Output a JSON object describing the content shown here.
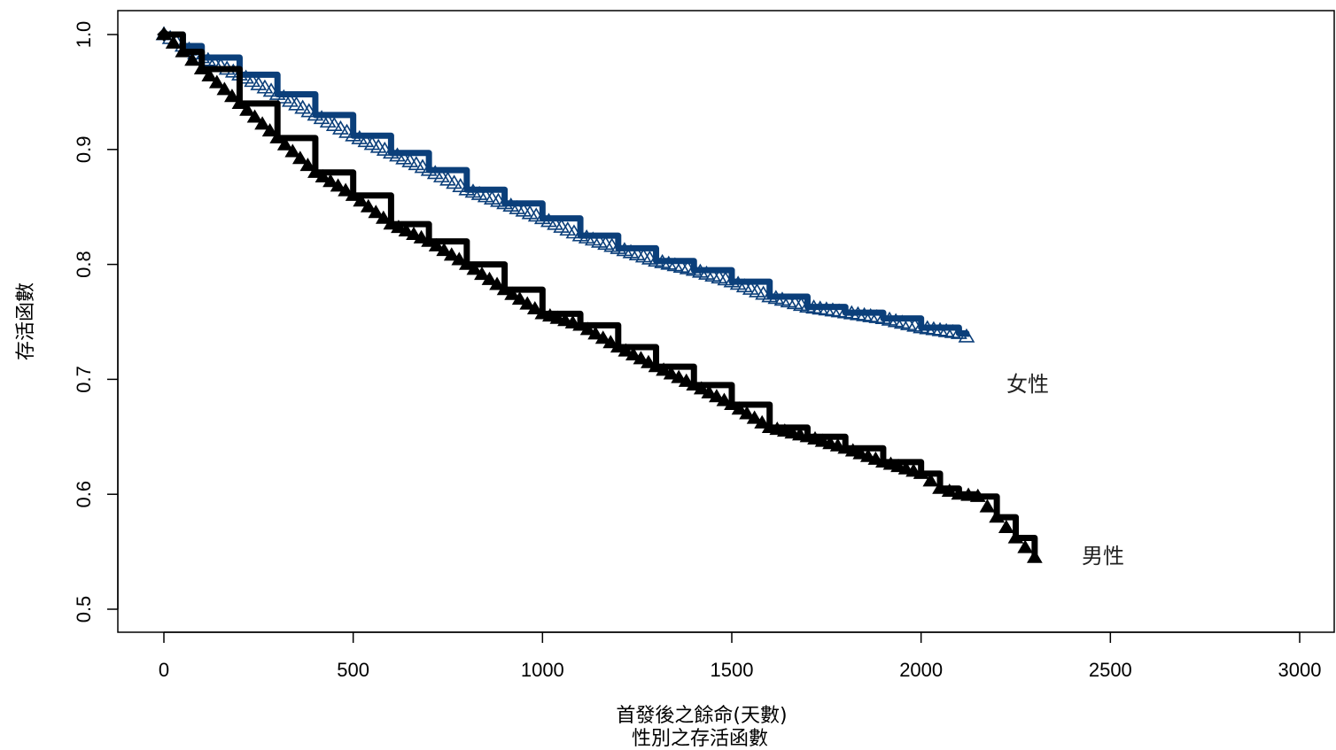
{
  "chart_data": {
    "type": "line",
    "title": "",
    "subtitle": "性別之存活函數",
    "xlabel": "首發後之餘命(天數)",
    "ylabel": "存活函數",
    "xlim": [
      0,
      3000
    ],
    "ylim": [
      0.5,
      1.0
    ],
    "x_ticks": [
      "0",
      "500",
      "1000",
      "1500",
      "2000",
      "2500",
      "3000"
    ],
    "y_ticks": [
      "0.5",
      "0.6",
      "0.7",
      "0.8",
      "0.9",
      "1.0"
    ],
    "grid": false,
    "legend": "direct labels",
    "series": [
      {
        "name": "女性",
        "color": "#0b3f7a",
        "marker": "open-triangle",
        "x": [
          0,
          50,
          100,
          200,
          300,
          400,
          500,
          600,
          700,
          800,
          900,
          1000,
          1100,
          1200,
          1300,
          1400,
          1500,
          1600,
          1700,
          1800,
          1900,
          2000,
          2100,
          2120
        ],
        "y": [
          1.0,
          0.99,
          0.98,
          0.965,
          0.948,
          0.93,
          0.912,
          0.897,
          0.882,
          0.865,
          0.853,
          0.84,
          0.825,
          0.814,
          0.803,
          0.795,
          0.785,
          0.772,
          0.763,
          0.758,
          0.753,
          0.745,
          0.74,
          0.737
        ]
      },
      {
        "name": "男性",
        "color": "#000000",
        "marker": "filled-triangle",
        "x": [
          0,
          50,
          100,
          200,
          300,
          400,
          500,
          600,
          700,
          800,
          900,
          1000,
          1100,
          1200,
          1300,
          1400,
          1500,
          1600,
          1700,
          1800,
          1900,
          2000,
          2050,
          2100,
          2150,
          2200,
          2250,
          2300
        ],
        "y": [
          1.0,
          0.985,
          0.97,
          0.94,
          0.91,
          0.88,
          0.86,
          0.835,
          0.82,
          0.8,
          0.778,
          0.757,
          0.747,
          0.728,
          0.711,
          0.695,
          0.678,
          0.658,
          0.65,
          0.64,
          0.628,
          0.618,
          0.605,
          0.6,
          0.598,
          0.58,
          0.562,
          0.545
        ]
      }
    ]
  }
}
